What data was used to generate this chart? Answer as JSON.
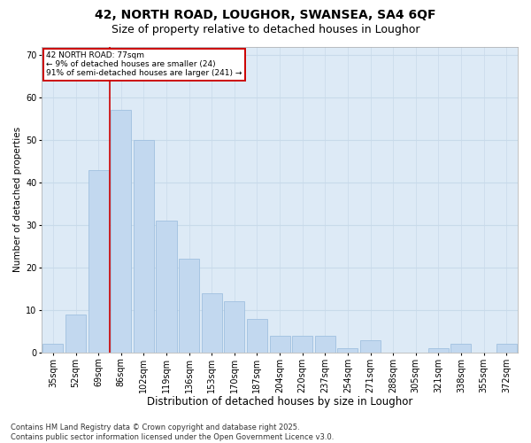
{
  "title1": "42, NORTH ROAD, LOUGHOR, SWANSEA, SA4 6QF",
  "title2": "Size of property relative to detached houses in Loughor",
  "xlabel": "Distribution of detached houses by size in Loughor",
  "ylabel": "Number of detached properties",
  "categories": [
    "35sqm",
    "52sqm",
    "69sqm",
    "86sqm",
    "102sqm",
    "119sqm",
    "136sqm",
    "153sqm",
    "170sqm",
    "187sqm",
    "204sqm",
    "220sqm",
    "237sqm",
    "254sqm",
    "271sqm",
    "288sqm",
    "305sqm",
    "321sqm",
    "338sqm",
    "355sqm",
    "372sqm"
  ],
  "values": [
    2,
    9,
    43,
    57,
    50,
    31,
    22,
    14,
    12,
    8,
    4,
    4,
    4,
    1,
    3,
    0,
    0,
    1,
    2,
    0,
    2
  ],
  "bar_color": "#c2d8ef",
  "bar_edge_color": "#a0c0e0",
  "grid_color": "#c8daea",
  "bg_color": "#ddeaf6",
  "fig_bg": "#ffffff",
  "vline_color": "#cc0000",
  "vline_x": 2.5,
  "annotation_text": "42 NORTH ROAD: 77sqm\n← 9% of detached houses are smaller (24)\n91% of semi-detached houses are larger (241) →",
  "annotation_box_facecolor": "#ffffff",
  "annotation_box_edgecolor": "#cc0000",
  "ylim": [
    0,
    72
  ],
  "yticks": [
    0,
    10,
    20,
    30,
    40,
    50,
    60,
    70
  ],
  "title1_fontsize": 10,
  "title2_fontsize": 9,
  "xlabel_fontsize": 8.5,
  "ylabel_fontsize": 7.5,
  "tick_fontsize": 7,
  "annot_fontsize": 6.5,
  "footer": "Contains HM Land Registry data © Crown copyright and database right 2025.\nContains public sector information licensed under the Open Government Licence v3.0.",
  "footer_fontsize": 6
}
